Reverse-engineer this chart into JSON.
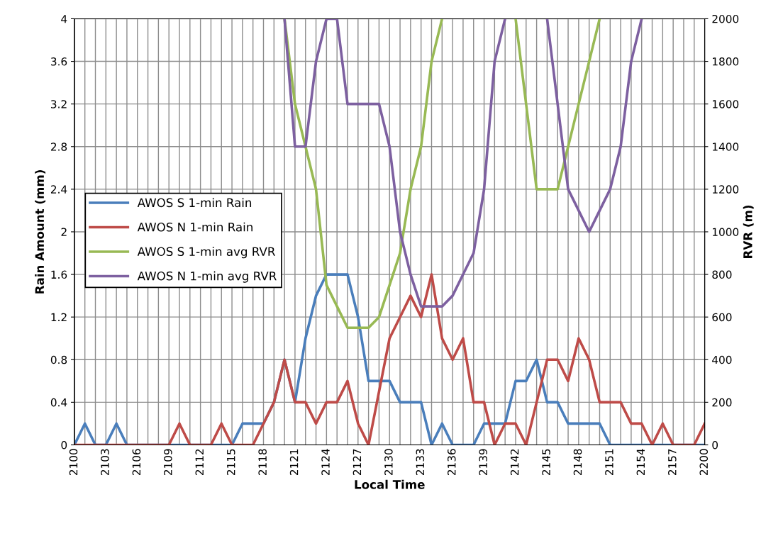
{
  "chart_data": {
    "type": "line",
    "xlabel": "Local Time",
    "ylabel": "Rain Amount (mm)",
    "y2label": "RVR (m)",
    "categories": [
      "2100",
      null,
      null,
      "2103",
      null,
      null,
      "2106",
      null,
      null,
      "2109",
      null,
      null,
      "2112",
      null,
      null,
      "2115",
      null,
      null,
      "2118",
      null,
      null,
      "2121",
      null,
      null,
      "2124",
      null,
      null,
      "2127",
      null,
      null,
      "2130",
      null,
      null,
      "2133",
      null,
      null,
      "2136",
      null,
      null,
      "2139",
      null,
      null,
      "2142",
      null,
      null,
      "2145",
      null,
      null,
      "2148",
      null,
      null,
      "2151",
      null,
      null,
      "2154",
      null,
      null,
      "2157",
      null,
      null,
      "2200"
    ],
    "ylim": [
      0,
      4
    ],
    "yticks": [
      0,
      0.4,
      0.8,
      1.2,
      1.6,
      2,
      2.4,
      2.8,
      3.2,
      3.6,
      4
    ],
    "y2lim": [
      0,
      2000
    ],
    "y2ticks": [
      0,
      200,
      400,
      600,
      800,
      1000,
      1200,
      1400,
      1600,
      1800,
      2000
    ],
    "grid": true,
    "legend": "left",
    "marker": "none",
    "line_style": "solid",
    "series": [
      {
        "name": "AWOS S 1-min Rain",
        "color": "#4a7ebb",
        "values": [
          0,
          0.2,
          0,
          0,
          0.2,
          0,
          0,
          0,
          0,
          0,
          0,
          0,
          0,
          0,
          0,
          0,
          0.2,
          0.2,
          0.2,
          0.4,
          0.8,
          0.4,
          1.0,
          1.4,
          1.6,
          1.6,
          1.6,
          1.2,
          0.6,
          0.6,
          0.6,
          0.4,
          0.4,
          0.4,
          0,
          0.2,
          0,
          0,
          0,
          0.2,
          0.2,
          0.2,
          0.6,
          0.6,
          0.8,
          0.4,
          0.4,
          0.2,
          0.2,
          0.2,
          0.2,
          0,
          0,
          0,
          0,
          0,
          0,
          0,
          0,
          0,
          0
        ]
      },
      {
        "name": "AWOS N 1-min Rain",
        "color": "#be4b48",
        "values": [
          0,
          0,
          0,
          0,
          0,
          0,
          0,
          0,
          0,
          0,
          0.2,
          0,
          0,
          0,
          0.2,
          0,
          0,
          0,
          0.2,
          0.4,
          0.8,
          0.4,
          0.4,
          0.2,
          0.4,
          0.4,
          0.6,
          0.2,
          0,
          0.5,
          1.0,
          1.2,
          1.4,
          1.2,
          1.6,
          1.0,
          0.8,
          1.0,
          0.4,
          0.4,
          0,
          0.2,
          0.2,
          0,
          0.4,
          0.8,
          0.8,
          0.6,
          1.0,
          0.8,
          0.4,
          0.4,
          0.4,
          0.2,
          0.2,
          0,
          0.2,
          0,
          0,
          0,
          0.2
        ]
      },
      {
        "name": "AWOS S 1-min avg RVR",
        "color": "#98b954",
        "axis": "y2",
        "values": [
          null,
          null,
          null,
          null,
          null,
          null,
          null,
          null,
          null,
          null,
          null,
          null,
          null,
          null,
          null,
          null,
          null,
          null,
          null,
          null,
          2000,
          1600,
          1400,
          1200,
          750,
          650,
          550,
          550,
          550,
          600,
          750,
          900,
          1200,
          1400,
          1800,
          2000,
          null,
          null,
          null,
          null,
          null,
          null,
          2000,
          1600,
          1200,
          1200,
          1200,
          1400,
          1600,
          1800,
          2000,
          null,
          null,
          null,
          null,
          null,
          null,
          null,
          null,
          null,
          null
        ]
      },
      {
        "name": "AWOS N 1-min avg RVR",
        "color": "#7d60a0",
        "axis": "y2",
        "values": [
          null,
          null,
          null,
          null,
          null,
          null,
          null,
          null,
          null,
          null,
          null,
          null,
          null,
          null,
          null,
          null,
          null,
          null,
          null,
          null,
          2000,
          1400,
          1400,
          1800,
          2000,
          2000,
          1600,
          1600,
          1600,
          1600,
          1400,
          1000,
          800,
          650,
          650,
          650,
          700,
          800,
          900,
          1200,
          1800,
          2000,
          null,
          null,
          null,
          2000,
          1600,
          1200,
          1100,
          1000,
          1100,
          1200,
          1400,
          1800,
          2000,
          null,
          null,
          null,
          null,
          null,
          null
        ]
      }
    ]
  }
}
